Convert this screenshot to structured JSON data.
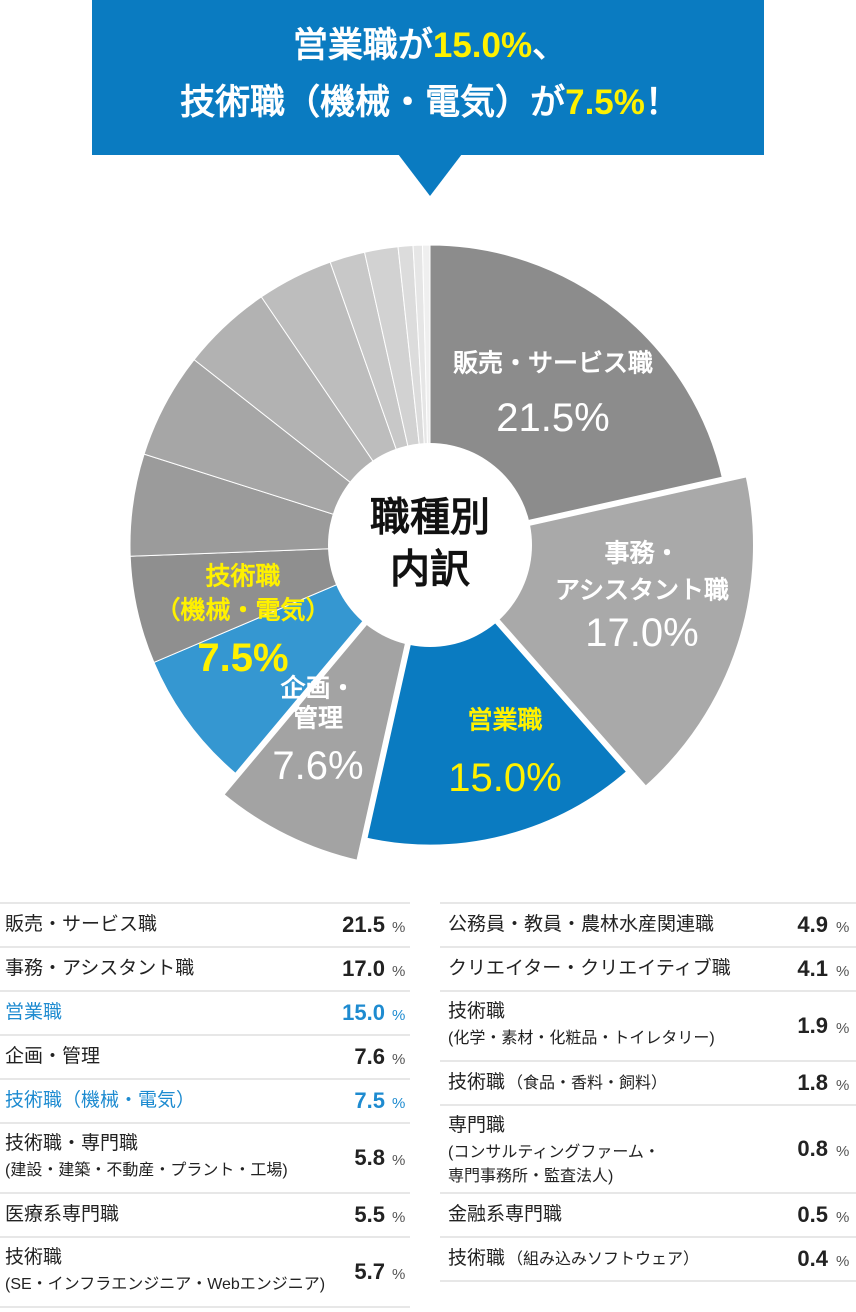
{
  "chart_data": {
    "type": "pie",
    "title_lines": [
      [
        {
          "text": "営業職が"
        },
        {
          "text": "15.0%",
          "highlight": true
        },
        {
          "text": "、"
        }
      ],
      [
        {
          "text": "技術職（機械・電気）が"
        },
        {
          "text": "7.5%",
          "highlight": true
        },
        {
          "text": "！"
        }
      ]
    ],
    "center_label": [
      "職種別",
      "内訳"
    ],
    "unit": "%",
    "categories": [
      "販売・サービス職",
      "事務・アシスタント職",
      "営業職",
      "企画・管理",
      "技術職（機械・電気）",
      "技術職・専門職",
      "医療系専門職",
      "技術職",
      "公務員・教員・農林水産関連職",
      "クリエイター・クリエイティブ職",
      "技術職",
      "技術職",
      "専門職",
      "金融系専門職",
      "技術職"
    ],
    "category_notes": [
      null,
      null,
      null,
      null,
      null,
      {
        "lines": [
          "(建設・建築・不動産・プラント・工場)"
        ],
        "inline": false
      },
      null,
      {
        "lines": [
          "(SE・インフラエンジニア・Webエンジニア)"
        ],
        "inline": false
      },
      null,
      null,
      {
        "lines": [
          "(化学・素材・化粧品・トイレタリー)"
        ],
        "inline": false
      },
      {
        "lines": [
          "（食品・香料・飼料）"
        ],
        "inline": true
      },
      {
        "lines": [
          "(コンサルティングファーム・",
          "専門事務所・監査法人)"
        ],
        "inline": false
      },
      null,
      {
        "lines": [
          "（組み込みソフトウェア）"
        ],
        "inline": true
      }
    ],
    "values": [
      21.5,
      17.0,
      15.0,
      7.6,
      7.5,
      5.8,
      5.5,
      5.7,
      4.9,
      4.1,
      1.9,
      1.8,
      0.8,
      0.5,
      0.4
    ],
    "value_labels": [
      "21.5",
      "17.0",
      "15.0",
      "7.6",
      "7.5",
      "5.8",
      "5.5",
      "5.7",
      "4.9",
      "4.1",
      "1.9",
      "1.8",
      "0.8",
      "0.5",
      "0.4"
    ],
    "colors": [
      "#8c8c8c",
      "#a9a9a9",
      "#0a7bc1",
      "#a3a3a3",
      "#3597d1",
      "#8f8f8f",
      "#9b9b9b",
      "#a6a6a6",
      "#b2b2b2",
      "#bdbdbd",
      "#c8c8c8",
      "#d2d2d2",
      "#dcdcdc",
      "#e6e6e6",
      "#efefef"
    ],
    "pie_labels": [
      [
        "販売・サービス職"
      ],
      [
        "事務・",
        "アシスタント職"
      ],
      [
        "営業職"
      ],
      [
        "企画・",
        "管理"
      ],
      [
        "技術職",
        "（機械・電気）"
      ]
    ],
    "exploded_slices": [
      1,
      3
    ],
    "highlighted_rows": [
      2,
      4
    ],
    "highlight_color": "#1e8bd0"
  }
}
